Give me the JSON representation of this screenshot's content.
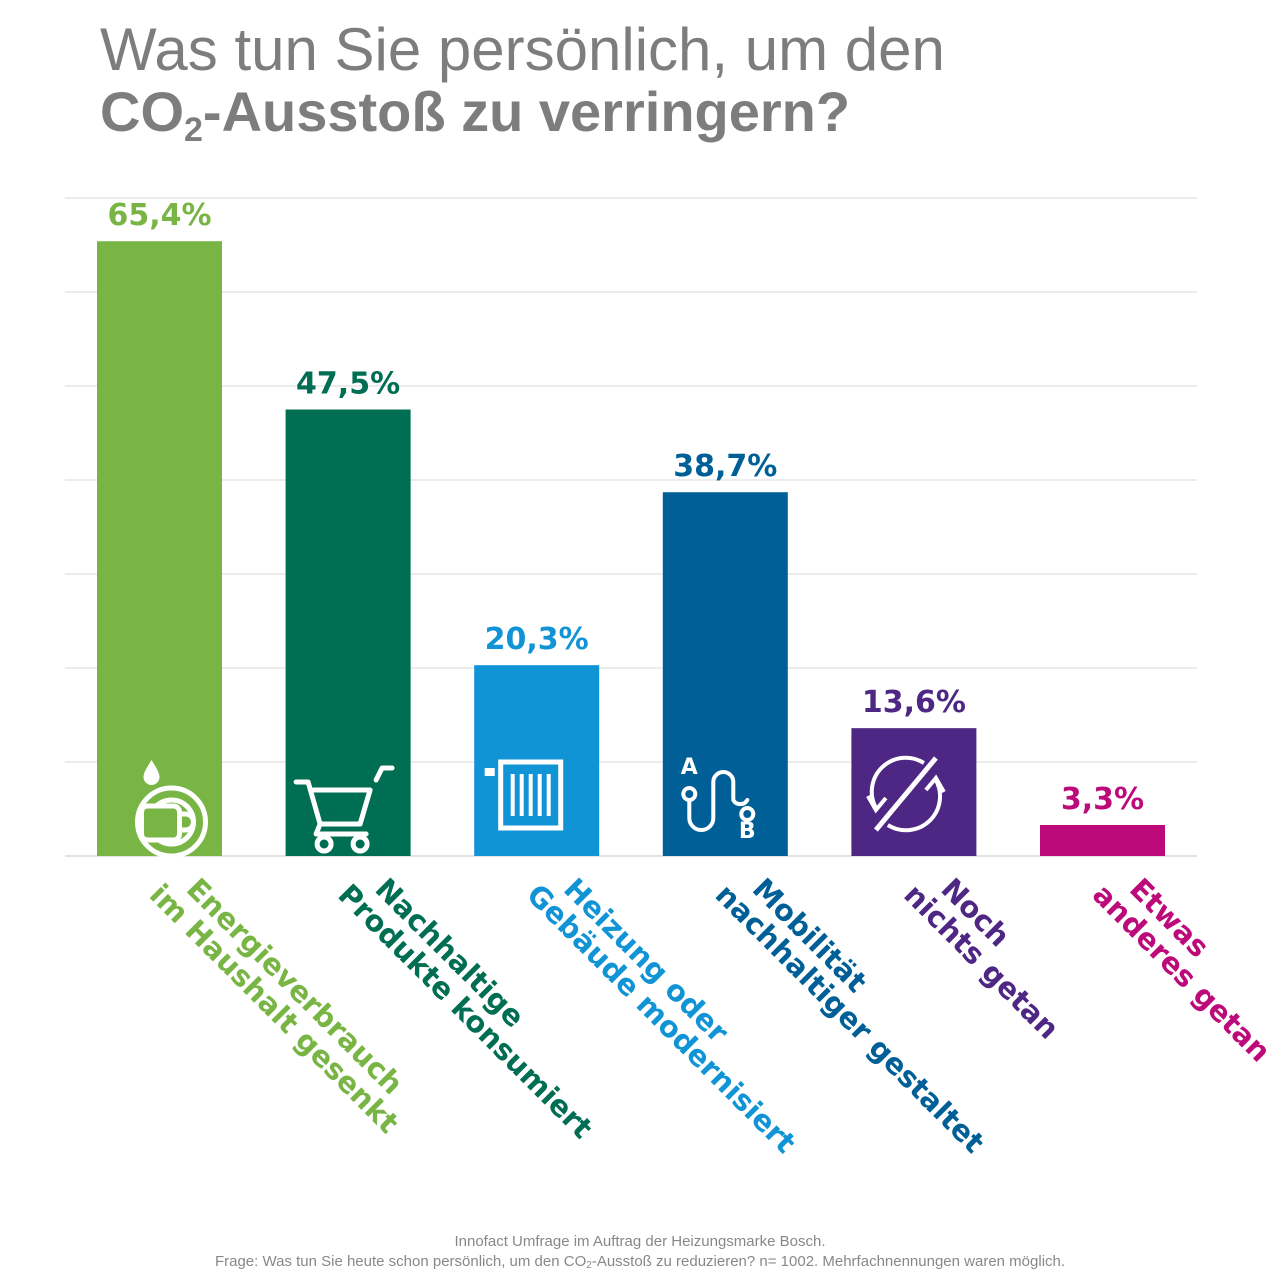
{
  "title": {
    "line1": "Was tun Sie persönlich, um den",
    "line2_pre": "CO",
    "line2_sub": "2",
    "line2_post": "-Ausstoß zu verringern?"
  },
  "chart_data": {
    "type": "bar",
    "categories": [
      [
        "Energieverbrauch",
        "im Haushalt gesenkt"
      ],
      [
        "Nachhaltige",
        "Produkte konsumiert"
      ],
      [
        "Heizung oder",
        "Gebäude modernisiert"
      ],
      [
        "Mobilität",
        "nachhaltiger gestaltet"
      ],
      [
        "Noch",
        "nichts getan"
      ],
      [
        "Etwas",
        "anderes getan"
      ]
    ],
    "values": [
      65.4,
      47.5,
      20.3,
      38.7,
      13.6,
      3.3
    ],
    "value_labels": [
      "65,4%",
      "47,5%",
      "20,3%",
      "38,7%",
      "13,6%",
      "3,3%"
    ],
    "colors": [
      "#78b544",
      "#006e52",
      "#1194d5",
      "#005f97",
      "#4e2683",
      "#bd0a7b"
    ],
    "icons": [
      "dish-water-icon",
      "shopping-cart-icon",
      "radiator-icon",
      "route-a-to-b-icon",
      "no-change-icon",
      null
    ],
    "ylim": [
      0,
      70
    ],
    "grid": true,
    "grid_color": "#d9d9d9",
    "title_color": "#7d7d7d"
  },
  "footer": {
    "line1": "Innofact Umfrage im Auftrag der Heizungsmarke Bosch.",
    "line2_pre": "Frage: Was tun Sie heute schon persönlich, um den CO",
    "line2_sub": "2",
    "line2_post": "-Ausstoß zu reduzieren? n= 1002. Mehrfachnennungen waren möglich."
  }
}
